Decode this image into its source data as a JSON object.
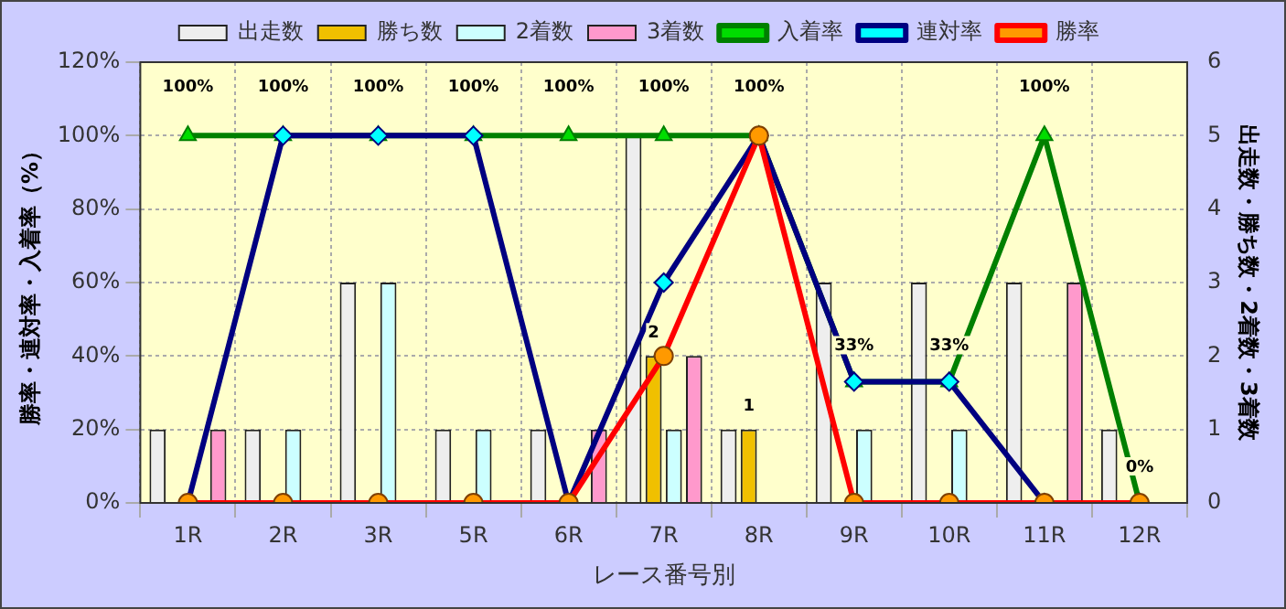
{
  "chart_data": {
    "type": "bar",
    "categories": [
      "1R",
      "2R",
      "3R",
      "5R",
      "6R",
      "7R",
      "8R",
      "9R",
      "10R",
      "11R",
      "12R"
    ],
    "xlabel": "レース番号別",
    "ylabel": "勝率・連対率・入着率（%）",
    "y2label": "出走数・勝ち数・2着数・3着数",
    "series": [
      {
        "name": "出走数",
        "axis": "y2",
        "color": "#eeeeee",
        "values": [
          1,
          1,
          3,
          1,
          1,
          5,
          1,
          3,
          3,
          3,
          1
        ]
      },
      {
        "name": "勝ち数",
        "axis": "y2",
        "color": "#f0c000",
        "values": [
          0,
          0,
          0,
          0,
          0,
          2,
          1,
          0,
          0,
          0,
          0
        ],
        "value_labels": [
          null,
          null,
          null,
          null,
          null,
          "2",
          "1",
          null,
          null,
          null,
          null
        ]
      },
      {
        "name": "2着数",
        "axis": "y2",
        "color": "#ccffff",
        "values": [
          0,
          1,
          3,
          1,
          0,
          1,
          0,
          1,
          1,
          0,
          0
        ]
      },
      {
        "name": "3着数",
        "axis": "y2",
        "color": "#ff99cc",
        "values": [
          1,
          0,
          0,
          0,
          1,
          2,
          0,
          0,
          0,
          3,
          0
        ]
      },
      {
        "name": "入着率",
        "type": "line",
        "axis": "y",
        "color": "#008000",
        "marker": "triangle",
        "values": [
          100,
          100,
          100,
          100,
          100,
          100,
          100,
          33,
          33,
          100,
          0
        ],
        "value_labels": [
          "100%",
          "100%",
          "100%",
          "100%",
          "100%",
          "100%",
          "100%",
          "33%",
          "33%",
          "100%",
          "0%"
        ]
      },
      {
        "name": "連対率",
        "type": "line",
        "axis": "y",
        "color": "#000080",
        "marker": "diamond",
        "values": [
          0,
          100,
          100,
          100,
          0,
          60,
          100,
          33,
          33,
          0,
          0
        ]
      },
      {
        "name": "勝率",
        "type": "line",
        "axis": "y",
        "color": "#ff0000",
        "marker": "circle",
        "values": [
          0,
          0,
          0,
          0,
          0,
          40,
          100,
          0,
          0,
          0,
          0
        ]
      }
    ],
    "ylim": [
      0,
      120
    ],
    "yticks": [
      {
        "value": 0,
        "label": "0%"
      },
      {
        "value": 20,
        "label": "20%"
      },
      {
        "value": 40,
        "label": "40%"
      },
      {
        "value": 60,
        "label": "60%"
      },
      {
        "value": 80,
        "label": "80%"
      },
      {
        "value": 100,
        "label": "100%"
      },
      {
        "value": 120,
        "label": "120%"
      }
    ],
    "y2lim": [
      0,
      6
    ],
    "y2ticks": [
      0,
      1,
      2,
      3,
      4,
      5,
      6
    ],
    "grid": true,
    "legend": "top"
  }
}
